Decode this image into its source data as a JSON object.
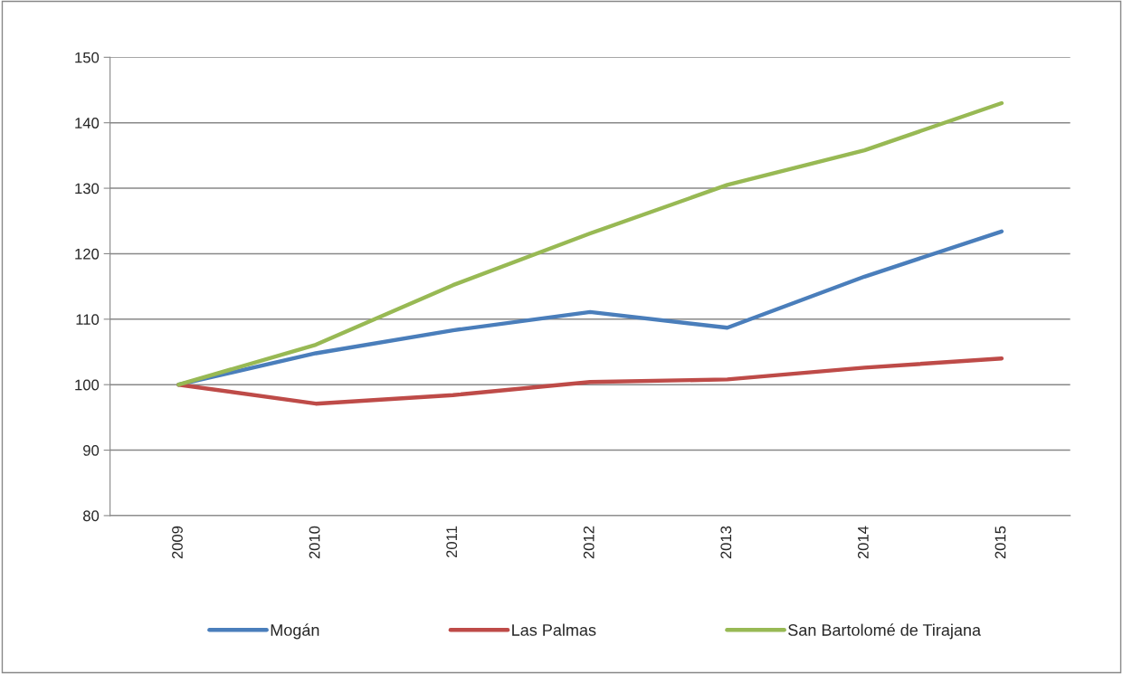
{
  "chart_data": {
    "type": "line",
    "categories": [
      "2009",
      "2010",
      "2011",
      "2012",
      "2013",
      "2014",
      "2015"
    ],
    "series": [
      {
        "name": "Mogán",
        "color": "#4a7ebb",
        "values": [
          100,
          104.8,
          108.3,
          111.1,
          108.7,
          116.5,
          123.4
        ]
      },
      {
        "name": "Las Palmas",
        "color": "#be4b48",
        "values": [
          100,
          97.1,
          98.4,
          100.4,
          100.8,
          102.6,
          104.0
        ]
      },
      {
        "name": "San Bartolomé de Tirajana",
        "color": "#98b954",
        "values": [
          100,
          106.1,
          115.2,
          123.1,
          130.5,
          135.8,
          143.0
        ]
      }
    ],
    "ylim": [
      80,
      150
    ],
    "yticks": [
      80,
      90,
      100,
      110,
      120,
      130,
      140,
      150
    ],
    "grid": "y",
    "legend": "bottom",
    "marker": "none",
    "line_style": "solid"
  }
}
